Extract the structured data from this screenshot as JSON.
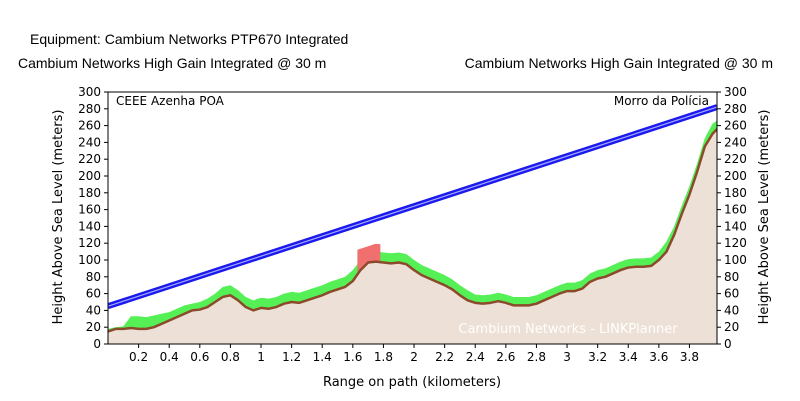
{
  "header": {
    "equipment": "Equipment: Cambium Networks PTP670 Integrated",
    "antenna_left": "Cambium Networks High Gain Integrated @ 30 m",
    "antenna_right": "Cambium Networks High Gain Integrated @ 30 m"
  },
  "chart_data": {
    "type": "area",
    "xlabel": "Range on path (kilometers)",
    "ylabel_left": "Height Above Sea Level (meters)",
    "ylabel_right": "Height Above Sea Level (meters)",
    "xlim": [
      0,
      3.98
    ],
    "ylim": [
      0,
      300
    ],
    "x_ticks": [
      0.2,
      0.4,
      0.6,
      0.8,
      1,
      1.2,
      1.4,
      1.6,
      1.8,
      2,
      2.2,
      2.4,
      2.6,
      2.8,
      3,
      3.2,
      3.4,
      3.6,
      3.8
    ],
    "y_ticks": [
      0,
      20,
      40,
      60,
      80,
      100,
      120,
      140,
      160,
      180,
      200,
      220,
      240,
      260,
      280,
      300
    ],
    "site_left": "CEEE Azenha POA",
    "site_right": "Morro da Polícia",
    "watermark": "Cambium Networks - LINKPlanner",
    "line_of_sight": {
      "x": [
        0,
        3.98
      ],
      "y": [
        45,
        282
      ]
    },
    "terrain": {
      "x": [
        0,
        0.05,
        0.1,
        0.15,
        0.2,
        0.25,
        0.3,
        0.35,
        0.4,
        0.45,
        0.5,
        0.55,
        0.6,
        0.65,
        0.7,
        0.75,
        0.8,
        0.85,
        0.9,
        0.95,
        1.0,
        1.05,
        1.1,
        1.15,
        1.2,
        1.25,
        1.3,
        1.35,
        1.4,
        1.45,
        1.5,
        1.55,
        1.6,
        1.65,
        1.7,
        1.75,
        1.8,
        1.85,
        1.9,
        1.95,
        2.0,
        2.05,
        2.1,
        2.15,
        2.2,
        2.25,
        2.3,
        2.35,
        2.4,
        2.45,
        2.5,
        2.55,
        2.6,
        2.65,
        2.7,
        2.75,
        2.8,
        2.85,
        2.9,
        2.95,
        3.0,
        3.05,
        3.1,
        3.15,
        3.2,
        3.25,
        3.3,
        3.35,
        3.4,
        3.45,
        3.5,
        3.55,
        3.6,
        3.65,
        3.7,
        3.75,
        3.8,
        3.85,
        3.9,
        3.95,
        3.98
      ],
      "y": [
        15,
        18,
        18,
        19,
        18,
        18,
        20,
        24,
        28,
        32,
        36,
        40,
        41,
        44,
        50,
        56,
        58,
        52,
        44,
        40,
        43,
        42,
        44,
        48,
        50,
        49,
        52,
        55,
        58,
        62,
        65,
        68,
        75,
        88,
        97,
        98,
        97,
        96,
        97,
        95,
        88,
        82,
        78,
        74,
        70,
        65,
        58,
        52,
        49,
        48,
        49,
        51,
        49,
        46,
        46,
        46,
        48,
        52,
        56,
        60,
        63,
        63,
        66,
        74,
        78,
        80,
        84,
        88,
        91,
        92,
        92,
        93,
        100,
        110,
        130,
        155,
        178,
        205,
        235,
        250,
        256
      ]
    },
    "clearance_green": {
      "y": [
        18,
        20,
        21,
        33,
        33,
        32,
        34,
        36,
        38,
        42,
        46,
        48,
        50,
        54,
        60,
        68,
        70,
        64,
        56,
        52,
        55,
        54,
        56,
        60,
        62,
        61,
        64,
        67,
        70,
        74,
        77,
        80,
        88,
        100,
        109,
        110,
        109,
        108,
        109,
        107,
        100,
        94,
        90,
        86,
        82,
        77,
        70,
        64,
        59,
        58,
        59,
        61,
        59,
        56,
        56,
        56,
        58,
        62,
        66,
        70,
        73,
        73,
        76,
        84,
        88,
        90,
        94,
        98,
        101,
        102,
        102,
        103,
        110,
        122,
        140,
        165,
        188,
        215,
        245,
        262,
        266
      ]
    },
    "obstruction_red": {
      "x_range": [
        1.63,
        1.78
      ],
      "top": 120
    },
    "colors": {
      "line_of_sight": "#1a1aee",
      "terrain_fill": "#ede0d6",
      "terrain_edge": "#8b4a2b",
      "clearance": "#55f055",
      "obstruction": "#f07070",
      "watermark": "#ffffff"
    }
  }
}
